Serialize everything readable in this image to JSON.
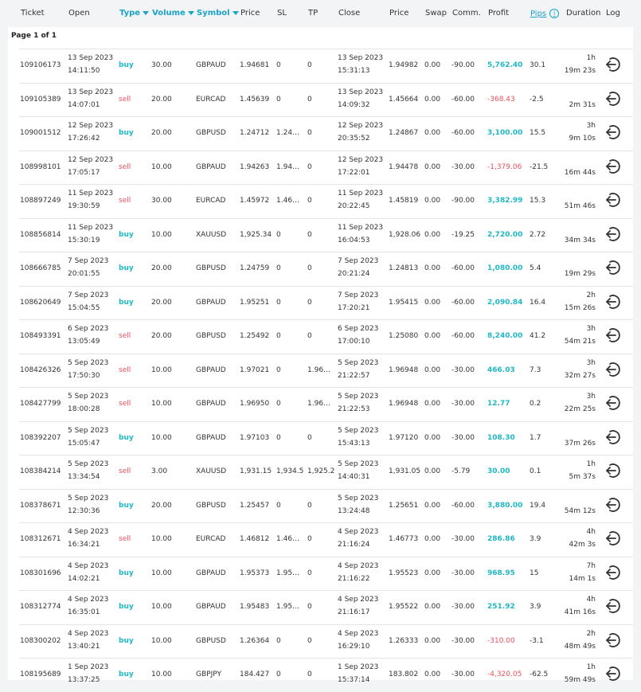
{
  "header": {
    "ticket": "Ticket",
    "open": "Open",
    "type": "Type",
    "volume": "Volume",
    "symbol": "Symbol",
    "price": "Price",
    "sl": "SL",
    "tp": "TP",
    "close": "Close",
    "close_price": "Price",
    "swap": "Swap",
    "comm": "Comm.",
    "profit": "Profit",
    "pips": "Pips",
    "duration": "Duration",
    "log": "Log"
  },
  "page_label": "Page 1 of 1",
  "rows": [
    {
      "ticket": "109106173",
      "open_date": "13 Sep 2023",
      "open_time": "14:11:50",
      "type": "buy",
      "volume": "30.00",
      "symbol": "GBPAUD",
      "price": "1.94681",
      "sl": "0",
      "tp": "0",
      "close_date": "13 Sep 2023",
      "close_time": "15:31:13",
      "close_price": "1.94982",
      "swap": "0.00",
      "comm": "-90.00",
      "profit": "5,762.40",
      "pips": "30.1",
      "dur1": "1h",
      "dur2": "19m 23s"
    },
    {
      "ticket": "109105389",
      "open_date": "13 Sep 2023",
      "open_time": "14:07:01",
      "type": "sell",
      "volume": "20.00",
      "symbol": "EURCAD",
      "price": "1.45639",
      "sl": "0",
      "tp": "0",
      "close_date": "13 Sep 2023",
      "close_time": "14:09:32",
      "close_price": "1.45664",
      "swap": "0.00",
      "comm": "-60.00",
      "profit": "-368.43",
      "pips": "-2.5",
      "dur1": "",
      "dur2": "2m 31s"
    },
    {
      "ticket": "109001512",
      "open_date": "12 Sep 2023",
      "open_time": "17:26:42",
      "type": "buy",
      "volume": "20.00",
      "symbol": "GBPUSD",
      "price": "1.24712",
      "sl": "1.24…",
      "tp": "0",
      "close_date": "12 Sep 2023",
      "close_time": "20:35:52",
      "close_price": "1.24867",
      "swap": "0.00",
      "comm": "-60.00",
      "profit": "3,100.00",
      "pips": "15.5",
      "dur1": "3h",
      "dur2": "9m 10s"
    },
    {
      "ticket": "108998101",
      "open_date": "12 Sep 2023",
      "open_time": "17:05:17",
      "type": "sell",
      "volume": "10.00",
      "symbol": "GBPAUD",
      "price": "1.94263",
      "sl": "1.94…",
      "tp": "0",
      "close_date": "12 Sep 2023",
      "close_time": "17:22:01",
      "close_price": "1.94478",
      "swap": "0.00",
      "comm": "-30.00",
      "profit": "-1,379.06",
      "pips": "-21.5",
      "dur1": "",
      "dur2": "16m 44s"
    },
    {
      "ticket": "108897249",
      "open_date": "11 Sep 2023",
      "open_time": "19:30:59",
      "type": "sell",
      "volume": "30.00",
      "symbol": "EURCAD",
      "price": "1.45972",
      "sl": "1.46…",
      "tp": "0",
      "close_date": "11 Sep 2023",
      "close_time": "20:22:45",
      "close_price": "1.45819",
      "swap": "0.00",
      "comm": "-90.00",
      "profit": "3,382.99",
      "pips": "15.3",
      "dur1": "",
      "dur2": "51m 46s"
    },
    {
      "ticket": "108856814",
      "open_date": "11 Sep 2023",
      "open_time": "15:30:19",
      "type": "buy",
      "volume": "10.00",
      "symbol": "XAUUSD",
      "price": "1,925.34",
      "sl": "0",
      "tp": "0",
      "close_date": "11 Sep 2023",
      "close_time": "16:04:53",
      "close_price": "1,928.06",
      "swap": "0.00",
      "comm": "-19.25",
      "profit": "2,720.00",
      "pips": "2.72",
      "dur1": "",
      "dur2": "34m 34s"
    },
    {
      "ticket": "108666785",
      "open_date": "7 Sep 2023",
      "open_time": "20:01:55",
      "type": "buy",
      "volume": "20.00",
      "symbol": "GBPUSD",
      "price": "1.24759",
      "sl": "0",
      "tp": "0",
      "close_date": "7 Sep 2023",
      "close_time": "20:21:24",
      "close_price": "1.24813",
      "swap": "0.00",
      "comm": "-60.00",
      "profit": "1,080.00",
      "pips": "5.4",
      "dur1": "",
      "dur2": "19m 29s"
    },
    {
      "ticket": "108620649",
      "open_date": "7 Sep 2023",
      "open_time": "15:04:55",
      "type": "buy",
      "volume": "20.00",
      "symbol": "GBPAUD",
      "price": "1.95251",
      "sl": "0",
      "tp": "0",
      "close_date": "7 Sep 2023",
      "close_time": "17:20:21",
      "close_price": "1.95415",
      "swap": "0.00",
      "comm": "-60.00",
      "profit": "2,090.84",
      "pips": "16.4",
      "dur1": "2h",
      "dur2": "15m 26s"
    },
    {
      "ticket": "108493391",
      "open_date": "6 Sep 2023",
      "open_time": "13:05:49",
      "type": "sell",
      "volume": "20.00",
      "symbol": "GBPUSD",
      "price": "1.25492",
      "sl": "0",
      "tp": "0",
      "close_date": "6 Sep 2023",
      "close_time": "17:00:10",
      "close_price": "1.25080",
      "swap": "0.00",
      "comm": "-60.00",
      "profit": "8,240.00",
      "pips": "41.2",
      "dur1": "3h",
      "dur2": "54m 21s"
    },
    {
      "ticket": "108426326",
      "open_date": "5 Sep 2023",
      "open_time": "17:50:30",
      "type": "sell",
      "volume": "10.00",
      "symbol": "GBPAUD",
      "price": "1.97021",
      "sl": "0",
      "tp": "1.96…",
      "close_date": "5 Sep 2023",
      "close_time": "21:22:57",
      "close_price": "1.96948",
      "swap": "0.00",
      "comm": "-30.00",
      "profit": "466.03",
      "pips": "7.3",
      "dur1": "3h",
      "dur2": "32m 27s"
    },
    {
      "ticket": "108427799",
      "open_date": "5 Sep 2023",
      "open_time": "18:00:28",
      "type": "sell",
      "volume": "10.00",
      "symbol": "GBPAUD",
      "price": "1.96950",
      "sl": "0",
      "tp": "1.96…",
      "close_date": "5 Sep 2023",
      "close_time": "21:22:53",
      "close_price": "1.96948",
      "swap": "0.00",
      "comm": "-30.00",
      "profit": "12.77",
      "pips": "0.2",
      "dur1": "3h",
      "dur2": "22m 25s"
    },
    {
      "ticket": "108392207",
      "open_date": "5 Sep 2023",
      "open_time": "15:05:47",
      "type": "buy",
      "volume": "10.00",
      "symbol": "GBPAUD",
      "price": "1.97103",
      "sl": "0",
      "tp": "0",
      "close_date": "5 Sep 2023",
      "close_time": "15:43:13",
      "close_price": "1.97120",
      "swap": "0.00",
      "comm": "-30.00",
      "profit": "108.30",
      "pips": "1.7",
      "dur1": "",
      "dur2": "37m 26s"
    },
    {
      "ticket": "108384214",
      "open_date": "5 Sep 2023",
      "open_time": "13:34:54",
      "type": "sell",
      "volume": "3.00",
      "symbol": "XAUUSD",
      "price": "1,931.15",
      "sl": "1,934.5",
      "tp": "1,925.2",
      "close_date": "5 Sep 2023",
      "close_time": "14:40:31",
      "close_price": "1,931.05",
      "swap": "0.00",
      "comm": "-5.79",
      "profit": "30.00",
      "pips": "0.1",
      "dur1": "1h",
      "dur2": "5m 37s"
    },
    {
      "ticket": "108378671",
      "open_date": "5 Sep 2023",
      "open_time": "12:30:36",
      "type": "buy",
      "volume": "20.00",
      "symbol": "GBPUSD",
      "price": "1.25457",
      "sl": "0",
      "tp": "0",
      "close_date": "5 Sep 2023",
      "close_time": "13:24:48",
      "close_price": "1.25651",
      "swap": "0.00",
      "comm": "-60.00",
      "profit": "3,880.00",
      "pips": "19.4",
      "dur1": "",
      "dur2": "54m 12s"
    },
    {
      "ticket": "108312671",
      "open_date": "4 Sep 2023",
      "open_time": "16:34:21",
      "type": "sell",
      "volume": "10.00",
      "symbol": "EURCAD",
      "price": "1.46812",
      "sl": "1.46…",
      "tp": "0",
      "close_date": "4 Sep 2023",
      "close_time": "21:16:24",
      "close_price": "1.46773",
      "swap": "0.00",
      "comm": "-30.00",
      "profit": "286.86",
      "pips": "3.9",
      "dur1": "4h",
      "dur2": "42m 3s"
    },
    {
      "ticket": "108301696",
      "open_date": "4 Sep 2023",
      "open_time": "14:02:21",
      "type": "buy",
      "volume": "10.00",
      "symbol": "GBPAUD",
      "price": "1.95373",
      "sl": "1.95…",
      "tp": "0",
      "close_date": "4 Sep 2023",
      "close_time": "21:16:22",
      "close_price": "1.95523",
      "swap": "0.00",
      "comm": "-30.00",
      "profit": "968.95",
      "pips": "15",
      "dur1": "7h",
      "dur2": "14m 1s"
    },
    {
      "ticket": "108312774",
      "open_date": "4 Sep 2023",
      "open_time": "16:35:01",
      "type": "buy",
      "volume": "10.00",
      "symbol": "GBPAUD",
      "price": "1.95483",
      "sl": "1.95…",
      "tp": "0",
      "close_date": "4 Sep 2023",
      "close_time": "21:16:17",
      "close_price": "1.95522",
      "swap": "0.00",
      "comm": "-30.00",
      "profit": "251.92",
      "pips": "3.9",
      "dur1": "4h",
      "dur2": "41m 16s"
    },
    {
      "ticket": "108300202",
      "open_date": "4 Sep 2023",
      "open_time": "13:40:21",
      "type": "buy",
      "volume": "10.00",
      "symbol": "GBPUSD",
      "price": "1.26364",
      "sl": "0",
      "tp": "0",
      "close_date": "4 Sep 2023",
      "close_time": "16:29:10",
      "close_price": "1.26333",
      "swap": "0.00",
      "comm": "-30.00",
      "profit": "-310.00",
      "pips": "-3.1",
      "dur1": "2h",
      "dur2": "48m 49s"
    },
    {
      "ticket": "108195689",
      "open_date": "1 Sep 2023",
      "open_time": "13:37:25",
      "type": "buy",
      "volume": "10.00",
      "symbol": "GBPJPY",
      "price": "184.427",
      "sl": "0",
      "tp": "0",
      "close_date": "1 Sep 2023",
      "close_time": "15:37:14",
      "close_price": "183.802",
      "swap": "0.00",
      "comm": "-30.00",
      "profit": "-4,320.05",
      "pips": "-62.5",
      "dur1": "1h",
      "dur2": "59m 49s"
    }
  ],
  "colors": {
    "accent": "#1aa3c8",
    "buy": "#1fb8c4",
    "sell": "#e8505b"
  },
  "icons": {
    "log": "log-exit-icon",
    "sort": "sort-down-icon",
    "info": "info-icon"
  }
}
